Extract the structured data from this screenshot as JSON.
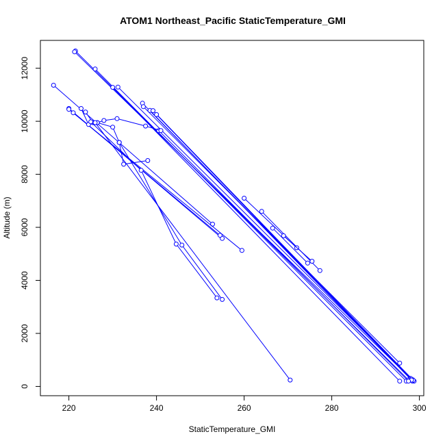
{
  "chart_data": {
    "type": "line",
    "title": "ATOM1 Northeast_Pacific StaticTemperature_GMI",
    "xlabel": "StaticTemperature_GMI",
    "ylabel": "Altitude (m)",
    "xlim": [
      213.5,
      301
    ],
    "ylim": [
      -350,
      13050
    ],
    "xticks": [
      220,
      240,
      260,
      280,
      300
    ],
    "yticks": [
      0,
      2000,
      4000,
      6000,
      8000,
      10000,
      12000
    ],
    "grid": false,
    "legend": "none",
    "series_color": "#0000ff",
    "series": [
      {
        "x": [
          221.5,
          297.5
        ],
        "y": [
          12650,
          250
        ]
      },
      {
        "x": [
          221.3,
          298.0
        ],
        "y": [
          12620,
          300
        ]
      },
      {
        "x": [
          226.0,
          297.0
        ],
        "y": [
          11970,
          200
        ]
      },
      {
        "x": [
          230.0,
          295.5
        ],
        "y": [
          11280,
          200
        ]
      },
      {
        "x": [
          231.2,
          298.5
        ],
        "y": [
          11290,
          250
        ]
      },
      {
        "x": [
          236.8,
          298.8
        ],
        "y": [
          10680,
          200
        ]
      },
      {
        "x": [
          237.0,
          295.5
        ],
        "y": [
          10550,
          880
        ]
      },
      {
        "x": [
          238.5,
          298.4
        ],
        "y": [
          10410,
          200
        ]
      },
      {
        "x": [
          239.2,
          298.6
        ],
        "y": [
          10400,
          230
        ]
      },
      {
        "x": [
          240.0,
          298.2
        ],
        "y": [
          10250,
          240
        ]
      },
      {
        "x": [
          240.5,
          297.5
        ],
        "y": [
          9650,
          200
        ]
      },
      {
        "x": [
          264.0,
          277.3
        ],
        "y": [
          6600,
          4370
        ]
      },
      {
        "x": [
          260.0,
          272.0
        ],
        "y": [
          7100,
          5230
        ]
      },
      {
        "x": [
          266.5,
          274.5
        ],
        "y": [
          5970,
          4650
        ]
      },
      {
        "x": [
          269.0,
          275.5
        ],
        "y": [
          5680,
          4720
        ]
      },
      {
        "x": [
          216.5,
          252.8
        ],
        "y": [
          11360,
          6120
        ]
      },
      {
        "x": [
          220.0,
          255.0
        ],
        "y": [
          10480,
          5580
        ]
      },
      {
        "x": [
          220.0,
          259.5
        ],
        "y": [
          10450,
          5130
        ]
      },
      {
        "x": [
          221.0,
          254.5
        ],
        "y": [
          10320,
          5700
        ]
      },
      {
        "x": [
          222.8,
          224.5,
          226.5,
          228.0,
          231.0,
          237.5,
          241.0
        ],
        "y": [
          10480,
          9880,
          9950,
          10030,
          10100,
          9820,
          9650
        ]
      },
      {
        "x": [
          223.8,
          225.5,
          226.5,
          230.0,
          231.5,
          232.5,
          238.0
        ],
        "y": [
          10350,
          9950,
          9950,
          9780,
          9200,
          8380,
          8520
        ]
      },
      {
        "x": [
          225.0,
          236.5,
          244.5,
          253.8
        ],
        "y": [
          9980,
          8150,
          5370,
          3340
        ]
      },
      {
        "x": [
          231.5,
          245.8,
          255.0
        ],
        "y": [
          9200,
          5330,
          3280
        ]
      },
      {
        "x": [
          226.0,
          270.5
        ],
        "y": [
          9950,
          240
        ]
      }
    ]
  }
}
